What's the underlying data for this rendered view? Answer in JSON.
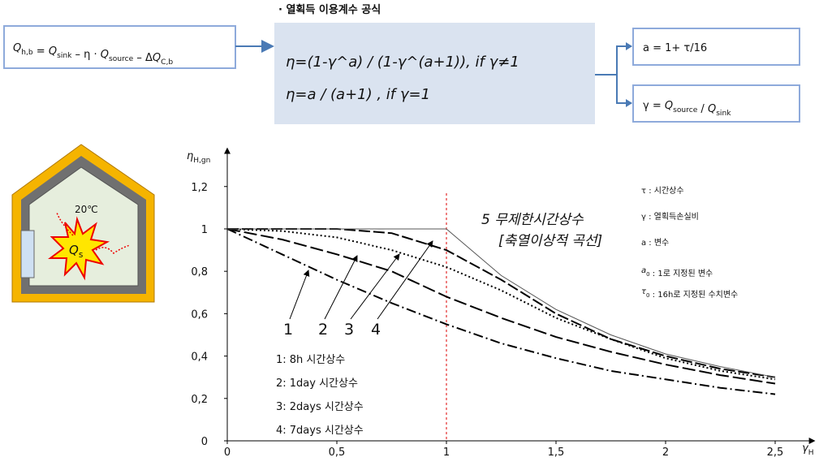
{
  "formula_left": [
    {
      "t": "Q",
      "sub": "h,b"
    },
    " = ",
    {
      "t": "Q",
      "sub": "sink"
    },
    " – η · ",
    {
      "t": "Q",
      "sub": "source"
    },
    " – Δ",
    {
      "t": "Q",
      "sub": "C,b"
    }
  ],
  "formula_title": "· 열획득 이용계수 공식",
  "formula_lines": [
    "η=(1-γ^a) / (1-γ^(a+1)), if γ≠1",
    "η=a / (a+1) ,      if  γ=1"
  ],
  "formula_a": "a = 1+ τ/16",
  "formula_gamma": [
    "γ = ",
    {
      "t": "Q",
      "sub": "source"
    },
    " / ",
    {
      "t": "Q",
      "sub": "sink"
    }
  ],
  "house": {
    "temperature": "20℃",
    "source": {
      "t": "Q",
      "sub": "s"
    }
  },
  "notes": [
    [
      "τ : 시간상수"
    ],
    [
      "γ : 열획득손실비"
    ],
    [
      "a : 변수"
    ],
    [
      {
        "t": "a",
        "sub": "0"
      },
      " : 1로 지정된 변수"
    ],
    [
      {
        "t": "τ",
        "sub": "0"
      },
      " : 16h로 지정된 수치변수"
    ]
  ],
  "chart_data": {
    "type": "line",
    "ylabel": "η",
    "ylabel_sub": "H,gn",
    "xlabel": "γ",
    "xlabel_sub": "H",
    "x": [
      0,
      0.25,
      0.5,
      0.75,
      1,
      1.25,
      1.5,
      1.75,
      2,
      2.25,
      2.5
    ],
    "series": [
      {
        "name": "1: 8h 시간상수",
        "label": "1",
        "color": "#000000",
        "dash": "dash-dot",
        "values": [
          1.0,
          0.88,
          0.76,
          0.65,
          0.55,
          0.46,
          0.39,
          0.33,
          0.29,
          0.25,
          0.22
        ]
      },
      {
        "name": "2: 1day 시간상수",
        "label": "2",
        "color": "#000000",
        "dash": "long-dash",
        "values": [
          1.0,
          0.95,
          0.88,
          0.8,
          0.68,
          0.58,
          0.49,
          0.42,
          0.36,
          0.31,
          0.27
        ]
      },
      {
        "name": "3: 2days 시간상수",
        "label": "3",
        "color": "#000000",
        "dash": "dot",
        "values": [
          1.0,
          0.99,
          0.96,
          0.9,
          0.82,
          0.71,
          0.58,
          0.48,
          0.39,
          0.33,
          0.29
        ]
      },
      {
        "name": "4: 7days 시간상수",
        "label": "4",
        "color": "#000000",
        "dash": "dash",
        "values": [
          1.0,
          1.0,
          1.0,
          0.98,
          0.9,
          0.76,
          0.6,
          0.48,
          0.4,
          0.34,
          0.3
        ]
      },
      {
        "name": "5 무제한시간상수",
        "label": "[축열이상적 곡선]",
        "color": "#555555",
        "dash": "solid",
        "values": [
          1.0,
          1.0,
          1.0,
          1.0,
          1.0,
          0.78,
          0.62,
          0.5,
          0.41,
          0.35,
          0.3
        ]
      }
    ],
    "reference_x": 1,
    "xlim": [
      0,
      2.68
    ],
    "ylim": [
      0,
      1.35
    ],
    "xticks": [
      0,
      {
        "value": 0.5,
        "label": "0,5"
      },
      1,
      {
        "value": 1.5,
        "label": "1,5"
      },
      2,
      {
        "value": 2.5,
        "label": "2,5"
      }
    ],
    "yticks": [
      0,
      {
        "value": 0.2,
        "label": "0,2"
      },
      {
        "value": 0.4,
        "label": "0,4"
      },
      {
        "value": 0.6,
        "label": "0,6"
      },
      {
        "value": 0.8,
        "label": "0,8"
      },
      1,
      {
        "value": 1.2,
        "label": "1,2"
      }
    ]
  }
}
